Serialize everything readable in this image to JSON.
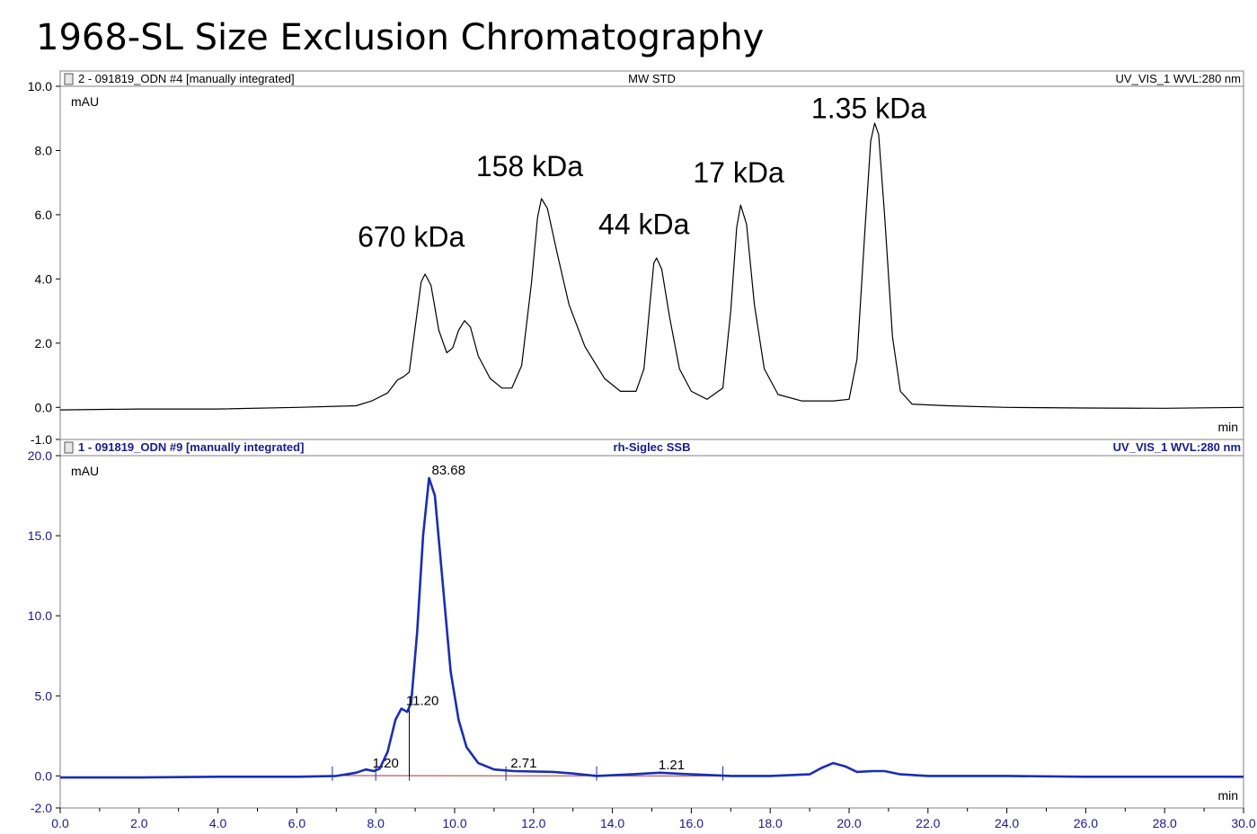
{
  "title": "1968-SL Size Exclusion Chromatography",
  "chart_data": [
    {
      "type": "line",
      "header": {
        "left": "2 - 091819_ODN #4 [manually integrated]",
        "center": "MW STD",
        "right": "UV_VIS_1 WVL:280 nm"
      },
      "color": "#000000",
      "ylabel": "mAU",
      "xlabel": "min",
      "ylim": [
        -1.0,
        10.0
      ],
      "yticks": [
        "10.0",
        "8.0",
        "6.0",
        "4.0",
        "2.0",
        "0.0",
        "-1.0"
      ],
      "xlim": [
        0,
        30
      ],
      "annotations": [
        {
          "text": "670 kDa",
          "x": 8.9,
          "y": 5.0
        },
        {
          "text": "158 kDa",
          "x": 11.9,
          "y": 7.2
        },
        {
          "text": "44 kDa",
          "x": 14.8,
          "y": 5.4
        },
        {
          "text": "17 kDa",
          "x": 17.2,
          "y": 7.0
        },
        {
          "text": "1.35 kDa",
          "x": 20.5,
          "y": 9.0
        }
      ],
      "series": [
        {
          "values": [
            [
              0.0,
              -0.08
            ],
            [
              2.0,
              -0.05
            ],
            [
              4.0,
              -0.05
            ],
            [
              6.0,
              0.0
            ],
            [
              7.5,
              0.05
            ],
            [
              7.9,
              0.2
            ],
            [
              8.3,
              0.45
            ],
            [
              8.55,
              0.85
            ],
            [
              8.7,
              0.95
            ],
            [
              8.85,
              1.1
            ],
            [
              9.0,
              2.5
            ],
            [
              9.15,
              3.9
            ],
            [
              9.25,
              4.15
            ],
            [
              9.4,
              3.8
            ],
            [
              9.6,
              2.4
            ],
            [
              9.8,
              1.7
            ],
            [
              9.95,
              1.85
            ],
            [
              10.1,
              2.4
            ],
            [
              10.25,
              2.7
            ],
            [
              10.4,
              2.5
            ],
            [
              10.6,
              1.6
            ],
            [
              10.9,
              0.9
            ],
            [
              11.2,
              0.6
            ],
            [
              11.45,
              0.6
            ],
            [
              11.7,
              1.3
            ],
            [
              11.95,
              3.9
            ],
            [
              12.1,
              5.9
            ],
            [
              12.2,
              6.5
            ],
            [
              12.35,
              6.2
            ],
            [
              12.6,
              4.8
            ],
            [
              12.9,
              3.2
            ],
            [
              13.3,
              1.9
            ],
            [
              13.8,
              0.9
            ],
            [
              14.2,
              0.5
            ],
            [
              14.6,
              0.5
            ],
            [
              14.8,
              1.2
            ],
            [
              14.95,
              3.2
            ],
            [
              15.05,
              4.5
            ],
            [
              15.12,
              4.65
            ],
            [
              15.25,
              4.3
            ],
            [
              15.45,
              2.8
            ],
            [
              15.7,
              1.2
            ],
            [
              16.0,
              0.5
            ],
            [
              16.4,
              0.25
            ],
            [
              16.8,
              0.6
            ],
            [
              17.0,
              3.0
            ],
            [
              17.15,
              5.6
            ],
            [
              17.25,
              6.3
            ],
            [
              17.4,
              5.7
            ],
            [
              17.6,
              3.2
            ],
            [
              17.85,
              1.2
            ],
            [
              18.2,
              0.4
            ],
            [
              18.8,
              0.2
            ],
            [
              19.6,
              0.2
            ],
            [
              20.0,
              0.25
            ],
            [
              20.2,
              1.5
            ],
            [
              20.4,
              5.5
            ],
            [
              20.55,
              8.3
            ],
            [
              20.65,
              8.85
            ],
            [
              20.75,
              8.5
            ],
            [
              20.9,
              6.0
            ],
            [
              21.1,
              2.2
            ],
            [
              21.3,
              0.5
            ],
            [
              21.6,
              0.1
            ],
            [
              22.5,
              0.05
            ],
            [
              24.0,
              0.0
            ],
            [
              26.0,
              -0.02
            ],
            [
              28.0,
              -0.03
            ],
            [
              30.0,
              0.0
            ]
          ]
        }
      ]
    },
    {
      "type": "line",
      "header": {
        "left": "1 - 091819_ODN #9 [manually integrated]",
        "center": "rh-Siglec SSB",
        "right": "UV_VIS_1 WVL:280 nm"
      },
      "header_color": "#1a1a8c",
      "color": "#1a2db4",
      "ylabel": "mAU",
      "xlabel": "min",
      "ylim": [
        -2.0,
        20.0
      ],
      "yticks": [
        "20.0",
        "15.0",
        "10.0",
        "5.0",
        "0.0",
        "-2.0"
      ],
      "xlim": [
        0,
        30
      ],
      "xticks": [
        "0.0",
        "2.0",
        "4.0",
        "6.0",
        "8.0",
        "10.0",
        "12.0",
        "14.0",
        "16.0",
        "18.0",
        "20.0",
        "22.0",
        "24.0",
        "26.0",
        "28.0",
        "30.0"
      ],
      "peak_labels": [
        {
          "text": "1.20",
          "x": 7.85,
          "y": 0.4
        },
        {
          "text": "11.20",
          "x": 8.7,
          "y": 4.3
        },
        {
          "text": "83.68",
          "x": 9.35,
          "y": 18.7
        },
        {
          "text": "2.71",
          "x": 11.35,
          "y": 0.4
        },
        {
          "text": "1.21",
          "x": 15.1,
          "y": 0.3
        }
      ],
      "series": [
        {
          "values": [
            [
              0.0,
              -0.1
            ],
            [
              2.0,
              -0.1
            ],
            [
              4.0,
              -0.05
            ],
            [
              6.0,
              -0.05
            ],
            [
              7.0,
              0.0
            ],
            [
              7.5,
              0.2
            ],
            [
              7.75,
              0.4
            ],
            [
              7.95,
              0.3
            ],
            [
              8.1,
              0.45
            ],
            [
              8.3,
              1.5
            ],
            [
              8.5,
              3.5
            ],
            [
              8.65,
              4.2
            ],
            [
              8.8,
              4.0
            ],
            [
              8.9,
              4.6
            ],
            [
              9.05,
              9.0
            ],
            [
              9.2,
              15.0
            ],
            [
              9.35,
              18.6
            ],
            [
              9.5,
              17.5
            ],
            [
              9.7,
              12.0
            ],
            [
              9.9,
              6.5
            ],
            [
              10.1,
              3.5
            ],
            [
              10.3,
              1.8
            ],
            [
              10.6,
              0.8
            ],
            [
              11.0,
              0.4
            ],
            [
              11.5,
              0.3
            ],
            [
              12.5,
              0.25
            ],
            [
              13.0,
              0.15
            ],
            [
              13.6,
              0.0
            ],
            [
              14.5,
              0.1
            ],
            [
              15.2,
              0.2
            ],
            [
              16.0,
              0.1
            ],
            [
              17.0,
              0.0
            ],
            [
              18.0,
              0.0
            ],
            [
              19.0,
              0.1
            ],
            [
              19.3,
              0.5
            ],
            [
              19.6,
              0.8
            ],
            [
              19.9,
              0.6
            ],
            [
              20.2,
              0.25
            ],
            [
              20.6,
              0.3
            ],
            [
              20.9,
              0.3
            ],
            [
              21.3,
              0.1
            ],
            [
              22.0,
              0.0
            ],
            [
              24.0,
              0.0
            ],
            [
              26.0,
              -0.05
            ],
            [
              28.0,
              -0.05
            ],
            [
              30.0,
              -0.05
            ]
          ]
        }
      ]
    }
  ]
}
